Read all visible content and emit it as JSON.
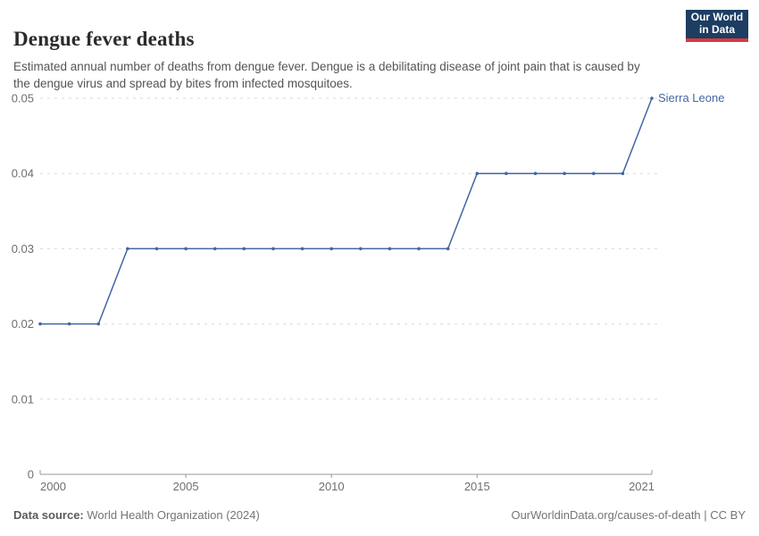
{
  "header": {
    "title": "Dengue fever deaths",
    "subtitle": "Estimated annual number of deaths from dengue fever. Dengue is a debilitating disease of joint pain that is caused by the dengue virus and spread by bites from infected mosquitoes.",
    "logo": {
      "line1": "Our World",
      "line2": "in Data"
    }
  },
  "colors": {
    "series_blue": "#4466a3",
    "grid": "#d9d9d9",
    "axis": "#989898",
    "tick_text": "#6e6e6e",
    "logo_bg": "#1d3d63",
    "logo_stripe": "#d93a3d"
  },
  "chart_data": {
    "type": "line",
    "title": "Dengue fever deaths",
    "x": [
      2000,
      2001,
      2002,
      2003,
      2004,
      2005,
      2006,
      2007,
      2008,
      2009,
      2010,
      2011,
      2012,
      2013,
      2014,
      2015,
      2016,
      2017,
      2018,
      2019,
      2020,
      2021
    ],
    "series": [
      {
        "name": "Sierra Leone",
        "color": "#4466a3",
        "values": [
          0.02,
          0.02,
          0.02,
          0.03,
          0.03,
          0.03,
          0.03,
          0.03,
          0.03,
          0.03,
          0.03,
          0.03,
          0.03,
          0.03,
          0.03,
          0.04,
          0.04,
          0.04,
          0.04,
          0.04,
          0.04,
          0.05
        ]
      }
    ],
    "xlabel": "",
    "ylabel": "",
    "ylim": [
      0,
      0.05
    ],
    "yticks": [
      0,
      0.01,
      0.02,
      0.03,
      0.04,
      0.05
    ],
    "ytick_labels": [
      "0",
      "0.01",
      "0.02",
      "0.03",
      "0.04",
      "0.05"
    ],
    "xticks": [
      2000,
      2005,
      2010,
      2015,
      2021
    ],
    "grid": "horizontal-dashed",
    "legend_position": "line-end-label",
    "markers": true
  },
  "footer": {
    "source_label": "Data source:",
    "source_value": " World Health Organization (2024)",
    "credit": "OurWorldinData.org/causes-of-death | CC BY"
  }
}
